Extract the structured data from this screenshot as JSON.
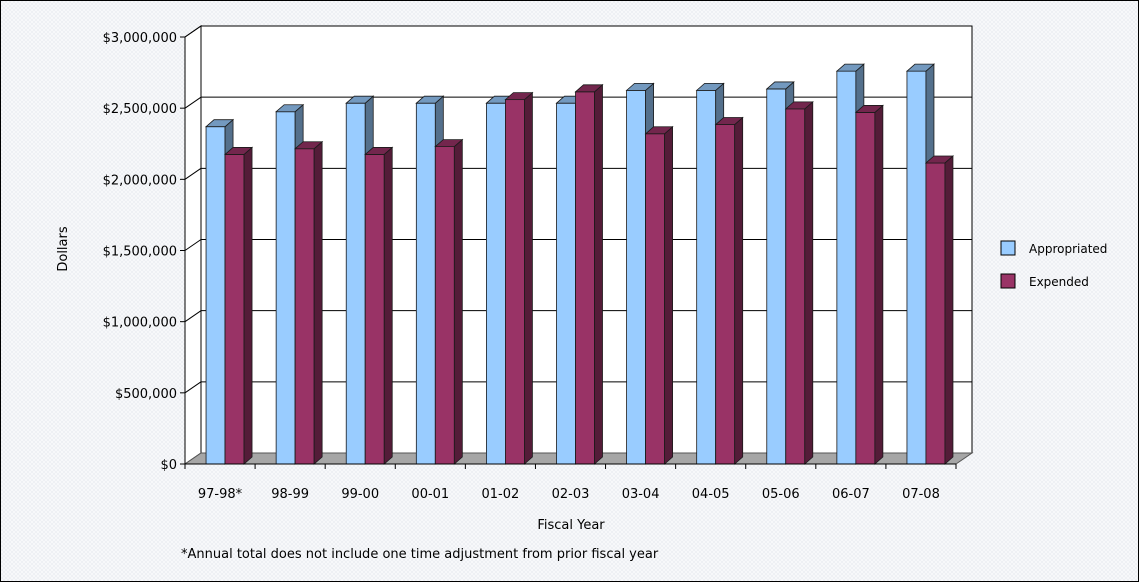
{
  "chart_data": {
    "type": "bar",
    "xlabel": "Fiscal Year",
    "ylabel": "Dollars",
    "footnote": "*Annual total does not include one time adjustment from prior fiscal year",
    "categories": [
      "97-98*",
      "98-99",
      "99-00",
      "00-01",
      "01-02",
      "02-03",
      "03-04",
      "04-05",
      "05-06",
      "06-07",
      "07-08"
    ],
    "series": [
      {
        "name": "Appropriated",
        "color": "#99ccff",
        "values": [
          2370000,
          2475000,
          2535000,
          2535000,
          2535000,
          2535000,
          2625000,
          2625000,
          2635000,
          2760000,
          2760000
        ]
      },
      {
        "name": "Expended",
        "color": "#993366",
        "values": [
          2175000,
          2215000,
          2175000,
          2230000,
          2560000,
          2615000,
          2320000,
          2385000,
          2495000,
          2470000,
          2115000
        ]
      }
    ],
    "ylim": [
      0,
      3000000
    ],
    "yticks": [
      0,
      500000,
      1000000,
      1500000,
      2000000,
      2500000,
      3000000
    ],
    "ytick_labels": [
      "$0",
      "$500,000",
      "$1,000,000",
      "$1,500,000",
      "$2,000,000",
      "$2,500,000",
      "$3,000,000"
    ],
    "grid": true,
    "legend_position": "right"
  }
}
